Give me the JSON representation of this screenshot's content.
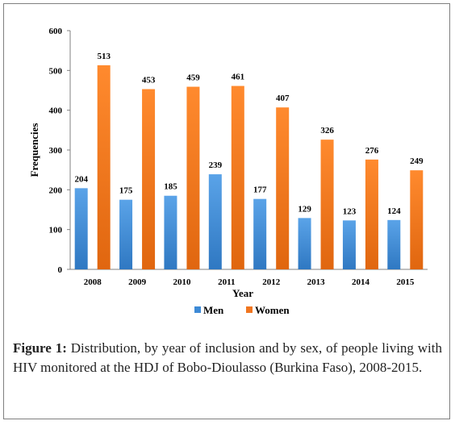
{
  "chart_data": {
    "type": "bar",
    "categories": [
      "2008",
      "2009",
      "2010",
      "2011",
      "2012",
      "2013",
      "2014",
      "2015"
    ],
    "series": [
      {
        "name": "Men",
        "values": [
          204,
          175,
          185,
          239,
          177,
          129,
          123,
          124
        ],
        "color": "#3d8ad6"
      },
      {
        "name": "Women",
        "values": [
          513,
          453,
          459,
          461,
          407,
          326,
          276,
          249
        ],
        "color": "#f07620"
      }
    ],
    "xlabel": "Year",
    "ylabel": "Frequencies",
    "ylim": [
      0,
      600
    ],
    "yticks": [
      0,
      100,
      200,
      300,
      400,
      500,
      600
    ],
    "grid": false,
    "legend": "bottom"
  },
  "caption": {
    "label": "Figure 1:",
    "text": "Distribution, by year of inclusion and by sex, of people living with HIV monitored at the HDJ of Bobo-Dioulasso (Burkina Faso), 2008-2015."
  }
}
